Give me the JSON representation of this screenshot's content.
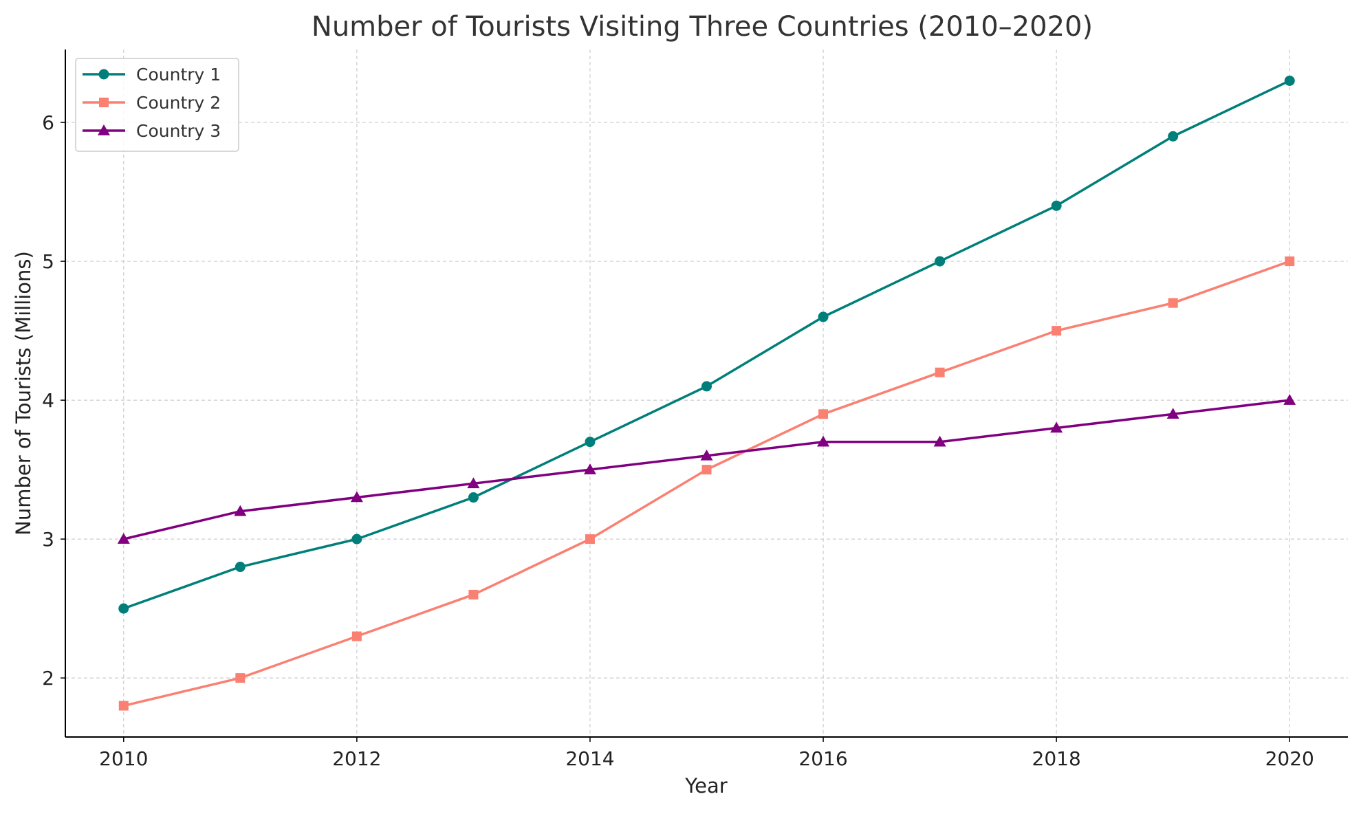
{
  "chart_data": {
    "type": "line",
    "title": "Number of Tourists Visiting Three Countries (2010–2020)",
    "xlabel": "Year",
    "ylabel": "Number of Tourists (Millions)",
    "x": [
      2010,
      2011,
      2012,
      2013,
      2014,
      2015,
      2016,
      2017,
      2018,
      2019,
      2020
    ],
    "xlim": [
      2009.5,
      2020.5
    ],
    "ylim": [
      1.575,
      6.525
    ],
    "x_ticks": [
      2010,
      2012,
      2014,
      2016,
      2018,
      2020
    ],
    "y_ticks": [
      2,
      3,
      4,
      5,
      6
    ],
    "x_tick_labels": [
      "2010",
      "2012",
      "2014",
      "2016",
      "2018",
      "2020"
    ],
    "y_tick_labels": [
      "2",
      "3",
      "4",
      "5",
      "6"
    ],
    "grid": true,
    "legend_position": "top-left",
    "series": [
      {
        "name": "Country 1",
        "color": "#007f7a",
        "marker": "circle",
        "values": [
          2.5,
          2.8,
          3.0,
          3.3,
          3.7,
          4.1,
          4.6,
          5.0,
          5.4,
          5.9,
          6.3
        ]
      },
      {
        "name": "Country 2",
        "color": "#fa8072",
        "marker": "square",
        "values": [
          1.8,
          2.0,
          2.3,
          2.6,
          3.0,
          3.5,
          3.9,
          4.2,
          4.5,
          4.7,
          5.0
        ]
      },
      {
        "name": "Country 3",
        "color": "#800080",
        "marker": "triangle",
        "values": [
          3.0,
          3.2,
          3.3,
          3.4,
          3.5,
          3.6,
          3.7,
          3.7,
          3.8,
          3.9,
          4.0
        ]
      }
    ]
  }
}
